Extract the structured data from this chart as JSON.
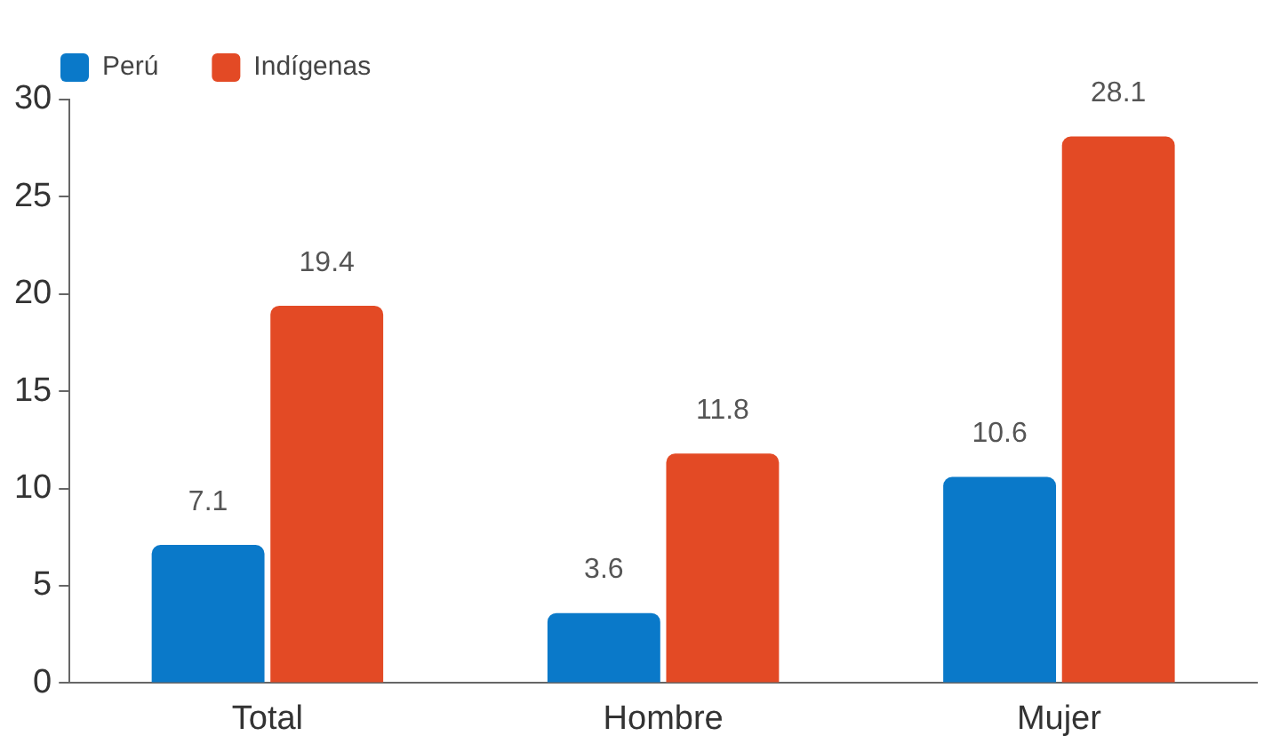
{
  "chart_data": {
    "type": "bar",
    "categories": [
      "Total",
      "Hombre",
      "Mujer"
    ],
    "series": [
      {
        "name": "Perú",
        "color": "#0a79c9",
        "values": [
          7.1,
          3.6,
          10.6
        ]
      },
      {
        "name": "Indígenas",
        "color": "#e34a25",
        "values": [
          19.4,
          11.8,
          28.1
        ]
      }
    ],
    "ylim": [
      0,
      30
    ],
    "yticks": [
      0,
      5,
      10,
      15,
      20,
      25,
      30
    ],
    "grid": false,
    "legend": "top left",
    "data_labels": true
  }
}
